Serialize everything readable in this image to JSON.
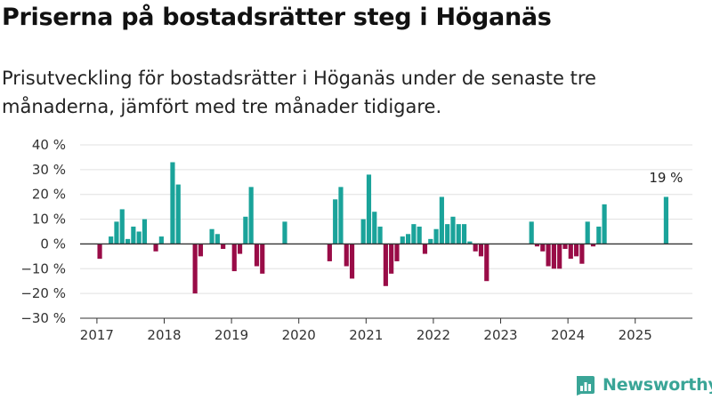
{
  "header": {
    "title": "Priserna på bostadsrätter steg i Höganäs",
    "subtitle": "Prisutveckling för bostadsrätter i Höganäs under de senaste tre månaderna, jämfört med tre månader tidigare."
  },
  "brand": {
    "name": "Newsworthy"
  },
  "colors": {
    "positive": "#1aa39a",
    "negative": "#990c47",
    "grid": "#e0e0e0",
    "baseline": "#333333",
    "logo": "#3aa597"
  },
  "chart_data": {
    "type": "bar",
    "title": "",
    "xlabel": "",
    "ylabel": "",
    "ylim": [
      -30,
      40
    ],
    "yticks": [
      40,
      30,
      20,
      10,
      0,
      -10,
      -20,
      -30
    ],
    "ytick_labels": [
      "40 %",
      "30 %",
      "20 %",
      "10 %",
      "0 %",
      "−10 %",
      "−20 %",
      "−30 %"
    ],
    "xlim": [
      2016.75,
      2025.85
    ],
    "xticks": [
      2017,
      2018,
      2019,
      2020,
      2021,
      2022,
      2023,
      2024,
      2025
    ],
    "xtick_labels": [
      "2017",
      "2018",
      "2019",
      "2020",
      "2021",
      "2022",
      "2023",
      "2024",
      "2025"
    ],
    "grid": true,
    "annotation": {
      "label": "19 %",
      "month": "2025-06"
    },
    "series": [
      {
        "values": [
          {
            "month": "2017-01",
            "value": -6
          },
          {
            "month": "2017-03",
            "value": 3
          },
          {
            "month": "2017-04",
            "value": 9
          },
          {
            "month": "2017-05",
            "value": 14
          },
          {
            "month": "2017-06",
            "value": 2
          },
          {
            "month": "2017-07",
            "value": 7
          },
          {
            "month": "2017-08",
            "value": 5
          },
          {
            "month": "2017-09",
            "value": 10
          },
          {
            "month": "2017-11",
            "value": -3
          },
          {
            "month": "2017-12",
            "value": 3
          },
          {
            "month": "2018-02",
            "value": 33
          },
          {
            "month": "2018-03",
            "value": 24
          },
          {
            "month": "2018-06",
            "value": -20
          },
          {
            "month": "2018-07",
            "value": -5
          },
          {
            "month": "2018-09",
            "value": 6
          },
          {
            "month": "2018-10",
            "value": 4
          },
          {
            "month": "2018-11",
            "value": -2
          },
          {
            "month": "2019-01",
            "value": -11
          },
          {
            "month": "2019-02",
            "value": -4
          },
          {
            "month": "2019-03",
            "value": 11
          },
          {
            "month": "2019-04",
            "value": 23
          },
          {
            "month": "2019-05",
            "value": -9
          },
          {
            "month": "2019-06",
            "value": -12
          },
          {
            "month": "2019-10",
            "value": 9
          },
          {
            "month": "2020-06",
            "value": -7
          },
          {
            "month": "2020-07",
            "value": 18
          },
          {
            "month": "2020-08",
            "value": 23
          },
          {
            "month": "2020-09",
            "value": -9
          },
          {
            "month": "2020-10",
            "value": -14
          },
          {
            "month": "2020-12",
            "value": 10
          },
          {
            "month": "2021-01",
            "value": 28
          },
          {
            "month": "2021-02",
            "value": 13
          },
          {
            "month": "2021-03",
            "value": 7
          },
          {
            "month": "2021-04",
            "value": -17
          },
          {
            "month": "2021-05",
            "value": -12
          },
          {
            "month": "2021-06",
            "value": -7
          },
          {
            "month": "2021-07",
            "value": 3
          },
          {
            "month": "2021-08",
            "value": 4
          },
          {
            "month": "2021-09",
            "value": 8
          },
          {
            "month": "2021-10",
            "value": 7
          },
          {
            "month": "2021-11",
            "value": -4
          },
          {
            "month": "2021-12",
            "value": 2
          },
          {
            "month": "2022-01",
            "value": 6
          },
          {
            "month": "2022-02",
            "value": 19
          },
          {
            "month": "2022-03",
            "value": 8
          },
          {
            "month": "2022-04",
            "value": 11
          },
          {
            "month": "2022-05",
            "value": 8
          },
          {
            "month": "2022-06",
            "value": 8
          },
          {
            "month": "2022-07",
            "value": 1
          },
          {
            "month": "2022-08",
            "value": -3
          },
          {
            "month": "2022-09",
            "value": -5
          },
          {
            "month": "2022-10",
            "value": -15
          },
          {
            "month": "2023-06",
            "value": 9
          },
          {
            "month": "2023-07",
            "value": -1
          },
          {
            "month": "2023-08",
            "value": -3
          },
          {
            "month": "2023-09",
            "value": -9
          },
          {
            "month": "2023-10",
            "value": -10
          },
          {
            "month": "2023-11",
            "value": -10
          },
          {
            "month": "2023-12",
            "value": -2
          },
          {
            "month": "2024-01",
            "value": -6
          },
          {
            "month": "2024-02",
            "value": -5
          },
          {
            "month": "2024-03",
            "value": -8
          },
          {
            "month": "2024-04",
            "value": 9
          },
          {
            "month": "2024-05",
            "value": -1
          },
          {
            "month": "2024-06",
            "value": 7
          },
          {
            "month": "2024-07",
            "value": 16
          },
          {
            "month": "2025-06",
            "value": 19
          }
        ]
      }
    ]
  }
}
